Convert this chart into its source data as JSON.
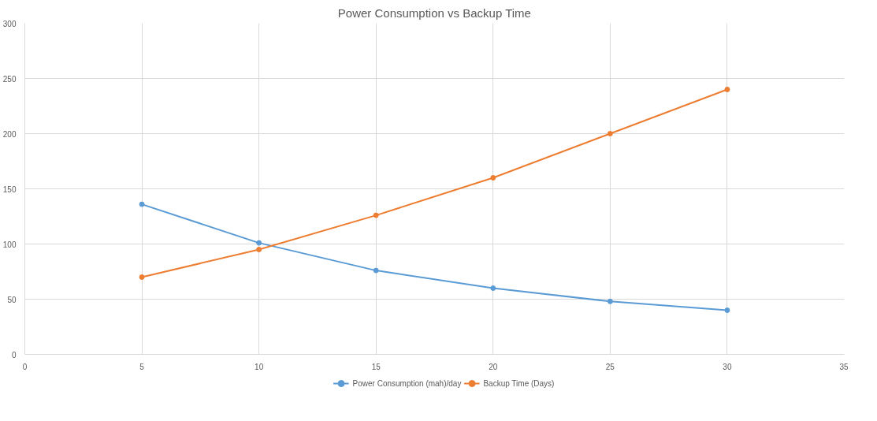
{
  "chart_data": {
    "type": "line",
    "title": "Power Consumption vs Backup Time",
    "x": [
      5,
      10,
      15,
      20,
      25,
      30
    ],
    "series": [
      {
        "name": "Power Consumption (mah)/day",
        "color": "#5b9bd5",
        "values": [
          136,
          101,
          76,
          60,
          48,
          40
        ]
      },
      {
        "name": "Backup Time (Days)",
        "color": "#ed7d31",
        "values": [
          70,
          95,
          126,
          160,
          200,
          240
        ]
      }
    ],
    "xlim": [
      0,
      35
    ],
    "xticks": [
      0,
      5,
      10,
      15,
      20,
      25,
      30,
      35
    ],
    "ylim": [
      0,
      300
    ],
    "yticks": [
      0,
      50,
      100,
      150,
      200,
      250,
      300
    ],
    "grid": true,
    "legend": "bottom",
    "marker": "circle",
    "line_style": "solid"
  }
}
